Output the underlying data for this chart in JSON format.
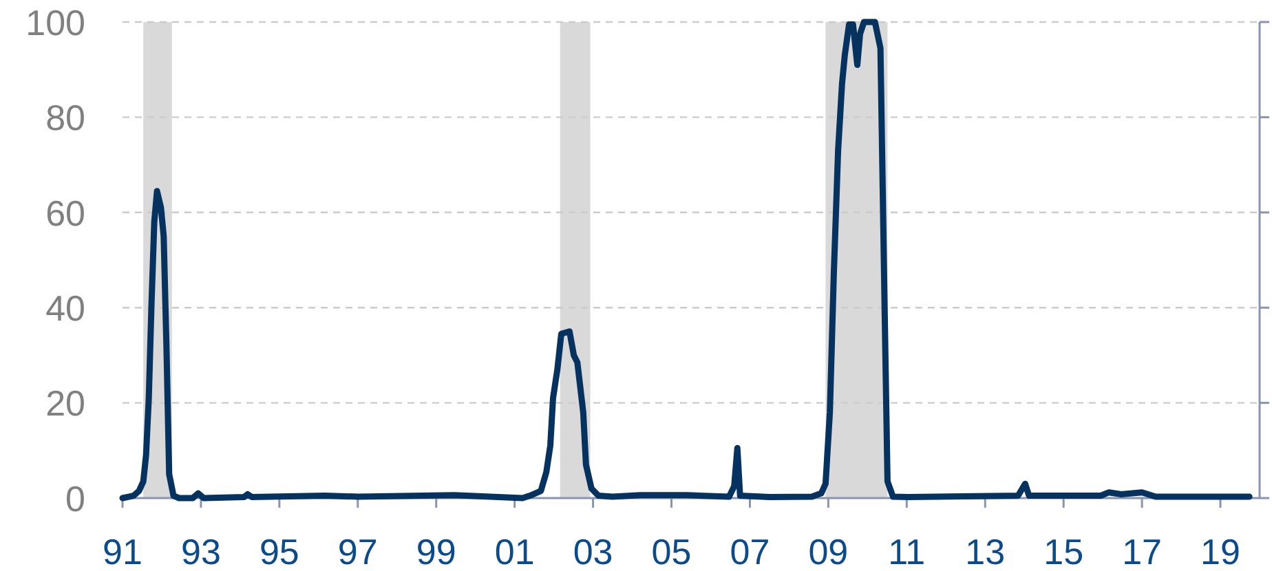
{
  "chart_data": {
    "type": "line",
    "x": [
      1991,
      1991.28,
      1991.42,
      1991.53,
      1991.6,
      1991.67,
      1991.74,
      1991.81,
      1991.88,
      1991.98,
      1992.05,
      1992.12,
      1992.19,
      1992.3,
      1992.44,
      1992.79,
      1992.93,
      1993.07,
      1994.1,
      1994.19,
      1994.3,
      1996.16,
      1997,
      1999.46,
      2001.2,
      2001.39,
      2001.67,
      2001.74,
      2001.81,
      2001.91,
      2001.98,
      2002.09,
      2002.19,
      2002.4,
      2002.51,
      2002.6,
      2002.75,
      2002.82,
      2002.96,
      2003.14,
      2003.5,
      2004.2,
      2005.4,
      2006.47,
      2006.6,
      2006.68,
      2006.75,
      2007.5,
      2008.58,
      2008.82,
      2008.93,
      2009.04,
      2009.14,
      2009.25,
      2009.35,
      2009.42,
      2009.53,
      2009.63,
      2009.74,
      2009.81,
      2009.91,
      2010.19,
      2010.33,
      2010.44,
      2010.51,
      2010.65,
      2011.04,
      2013.84,
      2014.02,
      2014.12,
      2015.95,
      2016.16,
      2016.47,
      2017,
      2017.35,
      2019.74
    ],
    "series": [
      {
        "color": "#06325f",
        "values": [
          0,
          0.5,
          1.5,
          3.5,
          9,
          21,
          41,
          58,
          64.5,
          61,
          55,
          32,
          5,
          0.5,
          0,
          0,
          1,
          0,
          0.2,
          0.8,
          0.2,
          0.5,
          0.3,
          0.6,
          0,
          0.5,
          1.5,
          3.5,
          5.5,
          11,
          21,
          27,
          34.5,
          35,
          30,
          28.5,
          18,
          7,
          2,
          0.5,
          0.3,
          0.6,
          0.6,
          0.3,
          2.5,
          10.5,
          0.5,
          0.2,
          0.3,
          1,
          3,
          18,
          47,
          73,
          87,
          93,
          99.5,
          99.5,
          91,
          97.5,
          100,
          100,
          94.5,
          38,
          3.5,
          0.3,
          0.2,
          0.5,
          3,
          0.5,
          0.5,
          1.2,
          0.8,
          1.2,
          0.3,
          0.3
        ]
      }
    ],
    "xlim": [
      1991,
      2020
    ],
    "xticks": [
      {
        "value": 1991,
        "label": "91"
      },
      {
        "value": 1993,
        "label": "93"
      },
      {
        "value": 1995,
        "label": "95"
      },
      {
        "value": 1997,
        "label": "97"
      },
      {
        "value": 1999,
        "label": "99"
      },
      {
        "value": 2001,
        "label": "01"
      },
      {
        "value": 2003,
        "label": "03"
      },
      {
        "value": 2005,
        "label": "05"
      },
      {
        "value": 2007,
        "label": "07"
      },
      {
        "value": 2009,
        "label": "09"
      },
      {
        "value": 2011,
        "label": "11"
      },
      {
        "value": 2013,
        "label": "13"
      },
      {
        "value": 2015,
        "label": "15"
      },
      {
        "value": 2017,
        "label": "17"
      },
      {
        "value": 2019,
        "label": "19"
      }
    ],
    "ylim": [
      0,
      100
    ],
    "yticks": [
      0,
      20,
      40,
      60,
      80,
      100
    ],
    "grid": "y",
    "marker": "none",
    "line_style": "solid",
    "bands": [
      {
        "axis": "x",
        "from": 1991.53,
        "to": 1992.26,
        "color": "#d9d9d9"
      },
      {
        "axis": "x",
        "from": 2002.16,
        "to": 2002.93,
        "color": "#d9d9d9"
      },
      {
        "axis": "x",
        "from": 2008.93,
        "to": 2010.51,
        "color": "#d9d9d9"
      }
    ]
  }
}
